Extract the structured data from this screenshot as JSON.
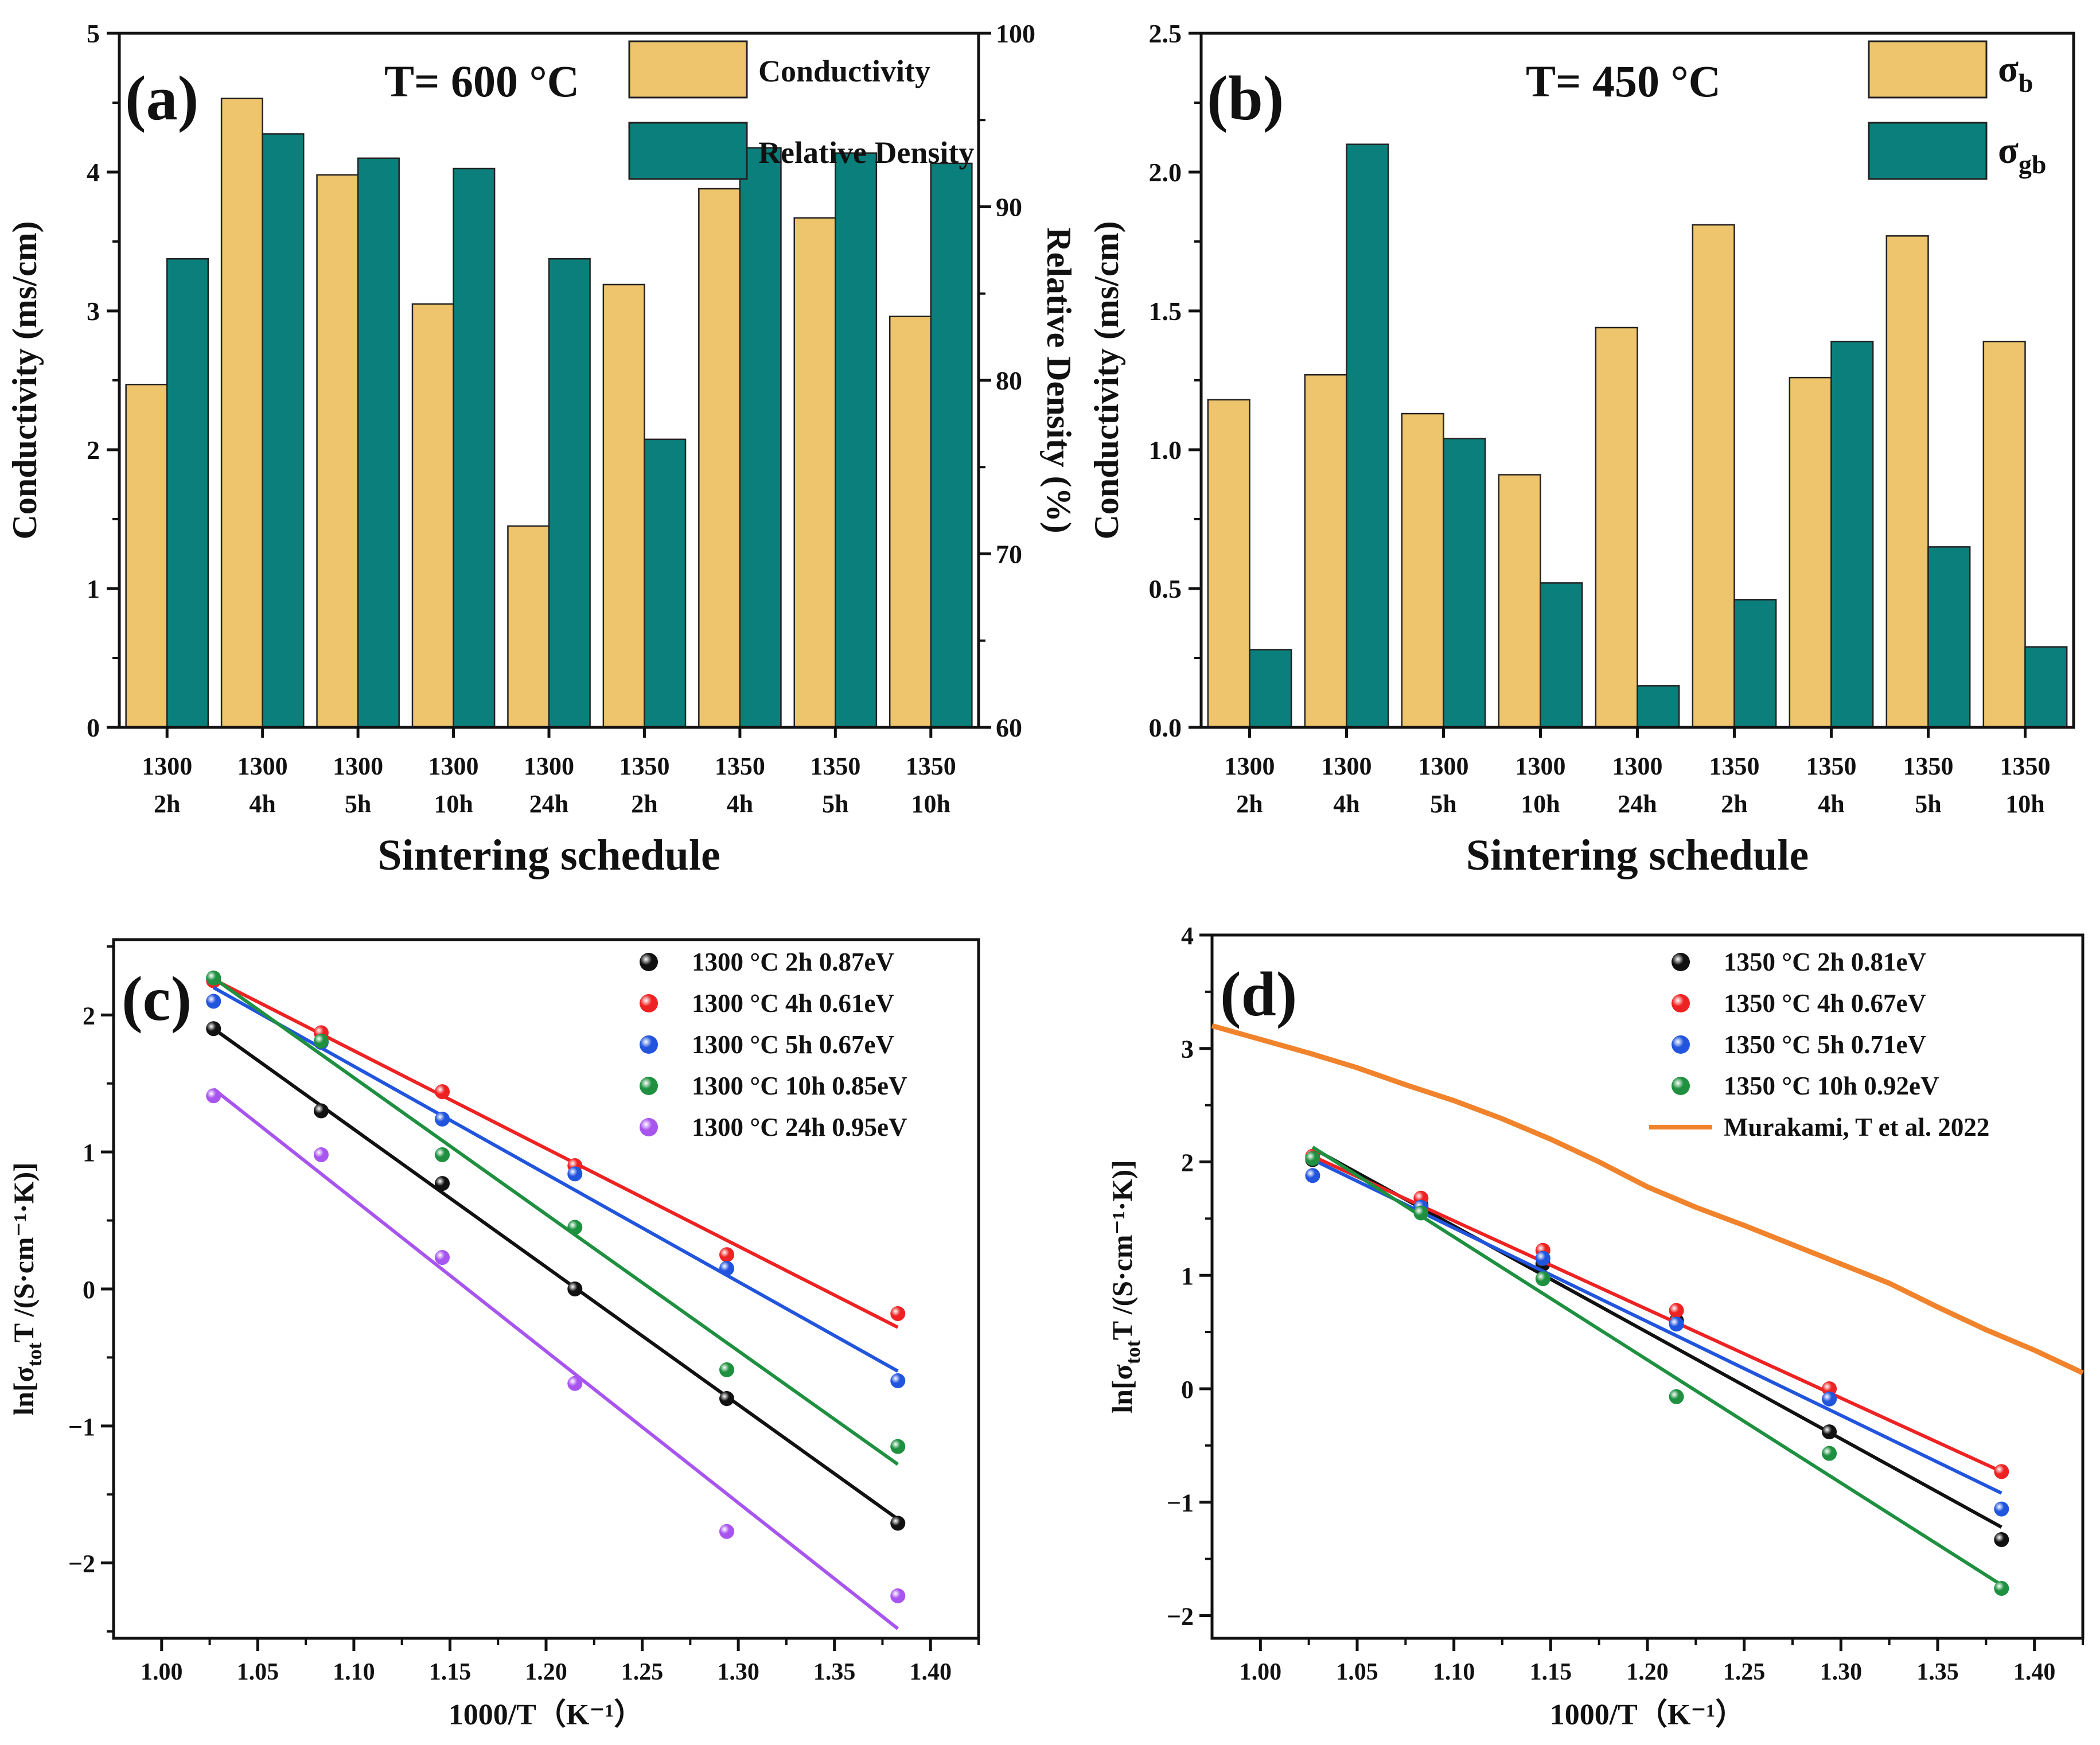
{
  "colors": {
    "tan": "#EEC46C",
    "teal": "#0B7F7B",
    "black": "#111111",
    "red": "#EE2222",
    "blue": "#2255DD",
    "green": "#1E9040",
    "purple": "#A855F0",
    "orange": "#F0832B"
  },
  "chart_data": [
    {
      "id": "a",
      "type": "bar",
      "panel_label": "(a)",
      "annotation": "T= 600 °C",
      "categories": [
        [
          "1300",
          "2h"
        ],
        [
          "1300",
          "4h"
        ],
        [
          "1300",
          "5h"
        ],
        [
          "1300",
          "10h"
        ],
        [
          "1300",
          "24h"
        ],
        [
          "1350",
          "2h"
        ],
        [
          "1350",
          "4h"
        ],
        [
          "1350",
          "5h"
        ],
        [
          "1350",
          "10h"
        ]
      ],
      "xlabel": "Sintering schedule",
      "ylabel": "Conductivity (ms/cm)",
      "ylim": [
        0,
        5
      ],
      "yticks": [
        "0",
        "1",
        "2",
        "3",
        "4",
        "5"
      ],
      "y2label": "Relative Density (%)",
      "y2lim": [
        60,
        100
      ],
      "y2ticks": [
        "60",
        "70",
        "80",
        "90",
        "100"
      ],
      "series": [
        {
          "name": "Conductivity",
          "axis": "left",
          "color": "tan",
          "values": [
            2.47,
            4.53,
            3.98,
            3.05,
            1.45,
            3.19,
            3.88,
            3.67,
            2.96
          ]
        },
        {
          "name": "Relative Density",
          "axis": "right",
          "color": "teal",
          "values": [
            87.0,
            94.2,
            92.8,
            92.2,
            87.0,
            76.6,
            93.4,
            93.1,
            92.5
          ]
        }
      ]
    },
    {
      "id": "b",
      "type": "bar",
      "panel_label": "(b)",
      "annotation": "T= 450 °C",
      "categories": [
        [
          "1300",
          "2h"
        ],
        [
          "1300",
          "4h"
        ],
        [
          "1300",
          "5h"
        ],
        [
          "1300",
          "10h"
        ],
        [
          "1300",
          "24h"
        ],
        [
          "1350",
          "2h"
        ],
        [
          "1350",
          "4h"
        ],
        [
          "1350",
          "5h"
        ],
        [
          "1350",
          "10h"
        ]
      ],
      "xlabel": "Sintering schedule",
      "ylabel": "Conductivity (ms/cm)",
      "ylim": [
        0,
        2.5
      ],
      "yticks": [
        "0.0",
        "0.5",
        "1.0",
        "1.5",
        "2.0",
        "2.5"
      ],
      "series": [
        {
          "name": "σ",
          "sub": "b",
          "color": "tan",
          "values": [
            1.18,
            1.27,
            1.13,
            0.91,
            1.44,
            1.81,
            1.26,
            1.77,
            1.39
          ]
        },
        {
          "name": "σ",
          "sub": "gb",
          "color": "teal",
          "values": [
            0.28,
            2.1,
            1.04,
            0.52,
            0.15,
            0.46,
            1.39,
            0.65,
            0.29
          ]
        }
      ]
    },
    {
      "id": "c",
      "type": "scatter",
      "panel_label": "(c)",
      "xlabel": "1000/T（K⁻¹）",
      "ylabel_pre": "ln[σ",
      "ylabel_sub": "tot",
      "ylabel_post": "T /(S·cm⁻¹·K)]",
      "xlim": [
        0.975,
        1.425
      ],
      "ylim": [
        -2.55,
        2.55
      ],
      "xticks": [
        1.0,
        1.05,
        1.1,
        1.15,
        1.2,
        1.25,
        1.3,
        1.35,
        1.4
      ],
      "xtick_labels": [
        "1.00",
        "1.05",
        "1.10",
        "1.15",
        "1.20",
        "1.25",
        "1.30",
        "1.35",
        "1.40"
      ],
      "yticks": [
        -2,
        -1,
        0,
        1,
        2
      ],
      "ytick_labels": [
        "−2",
        "−1",
        "0",
        "1",
        "2"
      ],
      "series": [
        {
          "name": "1300 °C 2h 0.87eV",
          "color": "black",
          "x": [
            1.027,
            1.083,
            1.146,
            1.215,
            1.294,
            1.383
          ],
          "y": [
            1.9,
            1.3,
            0.77,
            0.0,
            -0.8,
            -1.71
          ],
          "fit": [
            [
              1.027,
              1.9
            ],
            [
              1.383,
              -1.68
            ]
          ]
        },
        {
          "name": "1300 °C 4h 0.61eV",
          "color": "red",
          "x": [
            1.027,
            1.083,
            1.146,
            1.215,
            1.294,
            1.383
          ],
          "y": [
            2.25,
            1.87,
            1.44,
            0.9,
            0.25,
            -0.18
          ],
          "fit": [
            [
              1.027,
              2.26
            ],
            [
              1.383,
              -0.28
            ]
          ]
        },
        {
          "name": "1300 °C 5h 0.67eV",
          "color": "blue",
          "x": [
            1.027,
            1.083,
            1.146,
            1.215,
            1.294,
            1.383
          ],
          "y": [
            2.1,
            1.8,
            1.24,
            0.84,
            0.15,
            -0.67
          ],
          "fit": [
            [
              1.027,
              2.2
            ],
            [
              1.383,
              -0.6
            ]
          ]
        },
        {
          "name": "1300 °C 10h 0.85eV",
          "color": "green",
          "x": [
            1.027,
            1.083,
            1.146,
            1.215,
            1.294,
            1.383
          ],
          "y": [
            2.27,
            1.81,
            0.98,
            0.45,
            -0.59,
            -1.15
          ],
          "fit": [
            [
              1.027,
              2.27
            ],
            [
              1.383,
              -1.28
            ]
          ]
        },
        {
          "name": "1300 °C 24h 0.95eV",
          "color": "purple",
          "x": [
            1.027,
            1.083,
            1.146,
            1.215,
            1.294,
            1.383
          ],
          "y": [
            1.41,
            0.98,
            0.23,
            -0.69,
            -1.77,
            -2.24
          ],
          "fit": [
            [
              1.027,
              1.46
            ],
            [
              1.383,
              -2.48
            ]
          ]
        }
      ]
    },
    {
      "id": "d",
      "type": "scatter",
      "panel_label": "(d)",
      "xlabel": "1000/T（K⁻¹）",
      "ylabel_pre": "ln[σ",
      "ylabel_sub": "tot",
      "ylabel_post": "T /(S·cm⁻¹·K)]",
      "xlim": [
        0.975,
        1.425
      ],
      "ylim": [
        -2.2,
        4.0
      ],
      "xticks": [
        1.0,
        1.05,
        1.1,
        1.15,
        1.2,
        1.25,
        1.3,
        1.35,
        1.4
      ],
      "xtick_labels": [
        "1.00",
        "1.05",
        "1.10",
        "1.15",
        "1.20",
        "1.25",
        "1.30",
        "1.35",
        "1.40"
      ],
      "yticks": [
        -2,
        -1,
        0,
        1,
        2,
        3,
        4
      ],
      "ytick_labels": [
        "−2",
        "−1",
        "0",
        "1",
        "2",
        "3",
        "4"
      ],
      "series": [
        {
          "name": "1350 °C 2h 0.81eV",
          "color": "black",
          "x": [
            1.027,
            1.083,
            1.146,
            1.215,
            1.294,
            1.383
          ],
          "y": [
            2.02,
            1.62,
            1.1,
            0.6,
            -0.38,
            -1.33
          ],
          "fit": [
            [
              1.027,
              2.12
            ],
            [
              1.383,
              -1.22
            ]
          ]
        },
        {
          "name": "1350 °C 4h 0.67eV",
          "color": "red",
          "x": [
            1.027,
            1.083,
            1.146,
            1.215,
            1.294,
            1.383
          ],
          "y": [
            2.05,
            1.68,
            1.22,
            0.69,
            0.0,
            -0.73
          ],
          "fit": [
            [
              1.027,
              2.05
            ],
            [
              1.383,
              -0.73
            ]
          ]
        },
        {
          "name": "1350 °C 5h 0.71eV",
          "color": "blue",
          "x": [
            1.027,
            1.083,
            1.146,
            1.215,
            1.294,
            1.383
          ],
          "y": [
            1.88,
            1.6,
            1.15,
            0.57,
            -0.09,
            -1.06
          ],
          "fit": [
            [
              1.027,
              2.02
            ],
            [
              1.383,
              -0.92
            ]
          ]
        },
        {
          "name": "1350 °C 10h 0.92eV",
          "color": "green",
          "x": [
            1.027,
            1.083,
            1.146,
            1.215,
            1.294,
            1.383
          ],
          "y": [
            2.03,
            1.55,
            0.97,
            -0.07,
            -0.57,
            -1.76
          ],
          "fit": [
            [
              1.027,
              2.13
            ],
            [
              1.383,
              -1.73
            ]
          ]
        },
        {
          "name": "Murakami, T et al.  2022",
          "color": "orange",
          "kind": "line",
          "x": [
            0.975,
            1.0,
            1.025,
            1.05,
            1.075,
            1.1,
            1.125,
            1.15,
            1.175,
            1.2,
            1.225,
            1.25,
            1.275,
            1.3,
            1.325,
            1.35,
            1.375,
            1.4,
            1.425
          ],
          "y": [
            3.2,
            3.08,
            2.96,
            2.83,
            2.68,
            2.54,
            2.38,
            2.2,
            2.0,
            1.78,
            1.6,
            1.44,
            1.27,
            1.1,
            0.93,
            0.72,
            0.52,
            0.34,
            0.14
          ]
        }
      ]
    }
  ]
}
